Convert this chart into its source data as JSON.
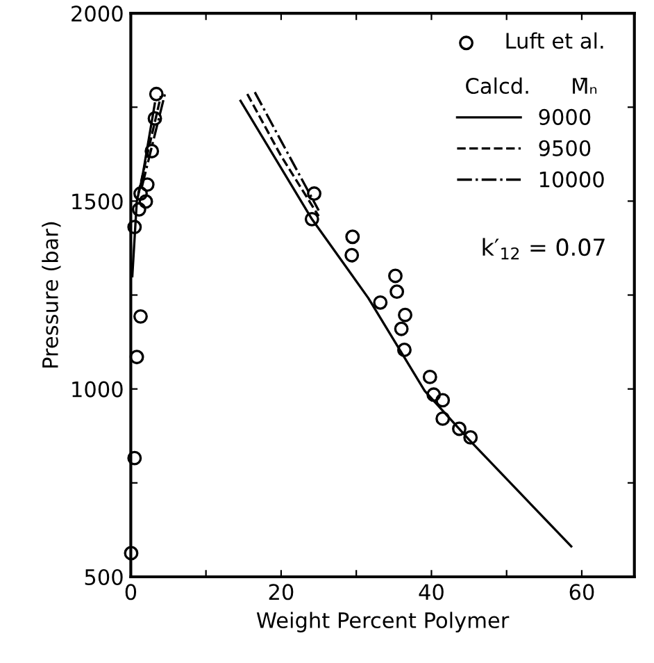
{
  "chart_data": {
    "type": "scatter",
    "xlabel": "Weight Percent Polymer",
    "ylabel": "Pressure (bar)",
    "xlim": [
      0,
      67
    ],
    "ylim": [
      500,
      2000
    ],
    "xticks": [
      0,
      {
        "value": 10,
        "label": null
      },
      20,
      {
        "value": 30,
        "label": null
      },
      40,
      {
        "value": 50,
        "label": null
      },
      60
    ],
    "yticks": [
      500,
      {
        "value": 750,
        "label": null
      },
      1000,
      {
        "value": 1250,
        "label": null
      },
      1500,
      {
        "value": 1750,
        "label": null
      },
      2000
    ],
    "grid": false,
    "legend": "top right",
    "legend_title": "Calcd.      M̄ₙ",
    "series": [
      {
        "name": "Luft et al.",
        "marker": "circle",
        "color": "#000000",
        "x": [
          3.4,
          3.2,
          2.8,
          2.2,
          2.0,
          1.3,
          1.1,
          0.5,
          1.3,
          0.8,
          0.5,
          0.05,
          24.1,
          24.4,
          29.5,
          29.4,
          35.2,
          35.4,
          33.2,
          36.5,
          36.0,
          36.4,
          39.8,
          40.3,
          41.5,
          41.5,
          43.7,
          45.2
        ],
        "values": [
          1785,
          1720,
          1633,
          1544,
          1499,
          1520,
          1478,
          1431,
          1193,
          1085,
          816,
          563,
          1452,
          1520,
          1405,
          1356,
          1301,
          1259,
          1230,
          1197,
          1160,
          1104,
          1032,
          985,
          970,
          921,
          894,
          871
        ]
      },
      {
        "name": "9000",
        "type": "line",
        "line_style": "solid",
        "color": "#000000",
        "x": [
          0.2,
          0.8,
          1.5,
          3.2,
          null,
          14.6,
          24.1,
          31.6,
          39.1,
          45,
          58.6
        ],
        "values": [
          1300,
          1500,
          1560,
          1760,
          null,
          1767,
          1452,
          1242,
          995,
          865,
          581
        ]
      },
      {
        "name": "9500",
        "type": "line",
        "line_style": "dashed",
        "color": "#000000",
        "x": [
          1.0,
          4.0,
          null,
          15.5,
          20,
          25
        ],
        "values": [
          1520,
          1780,
          null,
          1785,
          1620,
          1460
        ]
      },
      {
        "name": "10000",
        "type": "line",
        "line_style": "dashdot",
        "color": "#000000",
        "x": [
          1.5,
          4.6,
          null,
          16.5,
          20,
          25
        ],
        "values": [
          1540,
          1790,
          null,
          1790,
          1660,
          1475
        ]
      }
    ],
    "annotations": [
      {
        "text": "k′$_{12}$ = 0.07"
      }
    ]
  }
}
